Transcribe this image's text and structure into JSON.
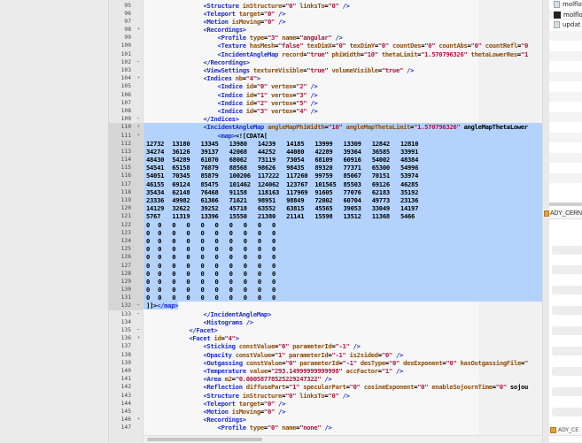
{
  "editor": {
    "selection": {
      "from_line": 110,
      "to_line": 132
    },
    "lines": [
      {
        "n": 95,
        "fold": "",
        "text": "                <Structure inStructure=\"0\" linksTo=\"0\" />"
      },
      {
        "n": 96,
        "fold": "",
        "text": "                <Teleport target=\"0\" />"
      },
      {
        "n": 97,
        "fold": "",
        "text": "                <Motion isMoving=\"0\" />"
      },
      {
        "n": 98,
        "fold": "open",
        "text": "                <Recordings>"
      },
      {
        "n": 99,
        "fold": "",
        "text": "                    <Profile type=\"3\" name=\"angular\" />"
      },
      {
        "n": 100,
        "fold": "",
        "text": "                    <Texture hasMesh=\"false\" texDimX=\"0\" texDimY=\"0\" countDes=\"0\" countAbs=\"0\" countRefl=\"0"
      },
      {
        "n": 101,
        "fold": "",
        "text": "                    <IncidentAngleMap record=\"true\" phiWidth=\"10\" thetaLimit=\"1.570796326\" thetaLowerRes=\"1"
      },
      {
        "n": 102,
        "fold": "end",
        "text": "                </Recordings>"
      },
      {
        "n": 103,
        "fold": "",
        "text": "                <ViewSettings textureVisible=\"true\" volumeVisible=\"true\" />"
      },
      {
        "n": 104,
        "fold": "open",
        "text": "                <Indices nb=\"4\">"
      },
      {
        "n": 105,
        "fold": "",
        "text": "                    <Indice id=\"0\" vertex=\"2\" />"
      },
      {
        "n": 106,
        "fold": "",
        "text": "                    <Indice id=\"1\" vertex=\"3\" />"
      },
      {
        "n": 107,
        "fold": "",
        "text": "                    <Indice id=\"2\" vertex=\"5\" />"
      },
      {
        "n": 108,
        "fold": "",
        "text": "                    <Indice id=\"3\" vertex=\"4\" />"
      },
      {
        "n": 109,
        "fold": "end",
        "text": "                </Indices>"
      },
      {
        "n": 110,
        "fold": "open",
        "text": "                <IncidentAngleMap angleMapPhiWidth=\"10\" angleMapThetaLimit=\"1.570796326\" angleMapThetaLower"
      },
      {
        "n": 111,
        "fold": "open",
        "text": "                    <map><![CDATA["
      },
      {
        "n": 112,
        "fold": "",
        "text": "12732\t13180\t13345\t13980\t14239\t14185\t13999\t13309\t12842\t12810"
      },
      {
        "n": 113,
        "fold": "",
        "text": "34274\t36126\t39137\t42068\t44252\t44080\t42289\t39364\t36585\t33991"
      },
      {
        "n": 114,
        "fold": "",
        "text": "48430\t54289\t61070\t68062\t73119\t73054\t68109\t60916\t54002\t48384"
      },
      {
        "n": 115,
        "fold": "",
        "text": "54541\t65158\t76879\t88568\t98626\t98435\t89320\t77371\t65300\t54996"
      },
      {
        "n": 116,
        "fold": "",
        "text": "54051\t70345\t85879\t100206\t117222\t117260\t99759\t85067\t70151\t53974"
      },
      {
        "n": 117,
        "fold": "",
        "text": "46155\t69124\t85475\t101462\t124062\t123767\t101565\t85503\t69126\t46285"
      },
      {
        "n": 118,
        "fold": "",
        "text": "35434\t62148\t76468\t91158\t118163\t117969\t91605\t77076\t62183\t35192"
      },
      {
        "n": 119,
        "fold": "",
        "text": "23336\t49982\t61306\t71621\t98951\t98849\t72002\t60704\t49773\t23136"
      },
      {
        "n": 120,
        "fold": "",
        "text": "14129\t32622\t39252\t45718\t63552\t63815\t45565\t39053\t33049\t14197"
      },
      {
        "n": 121,
        "fold": "",
        "text": "5767\t11319\t13396\t15550\t21380\t21141\t15598\t13512\t11368\t5466"
      },
      {
        "n": 122,
        "fold": "",
        "text": "0\t0\t0\t0\t0\t0\t0\t0\t0\t0"
      },
      {
        "n": 123,
        "fold": "",
        "text": "0\t0\t0\t0\t0\t0\t0\t0\t0\t0"
      },
      {
        "n": 124,
        "fold": "",
        "text": "0\t0\t0\t0\t0\t0\t0\t0\t0\t0"
      },
      {
        "n": 125,
        "fold": "",
        "text": "0\t0\t0\t0\t0\t0\t0\t0\t0\t0"
      },
      {
        "n": 126,
        "fold": "",
        "text": "0\t0\t0\t0\t0\t0\t0\t0\t0\t0"
      },
      {
        "n": 127,
        "fold": "",
        "text": "0\t0\t0\t0\t0\t0\t0\t0\t0\t0"
      },
      {
        "n": 128,
        "fold": "",
        "text": "0\t0\t0\t0\t0\t0\t0\t0\t0\t0"
      },
      {
        "n": 129,
        "fold": "",
        "text": "0\t0\t0\t0\t0\t0\t0\t0\t0\t0"
      },
      {
        "n": 130,
        "fold": "",
        "text": "0\t0\t0\t0\t0\t0\t0\t0\t0\t0"
      },
      {
        "n": 131,
        "fold": "",
        "text": "0\t0\t0\t0\t0\t0\t0\t0\t0\t0"
      },
      {
        "n": 132,
        "fold": "end",
        "text": "]]></map>"
      },
      {
        "n": 133,
        "fold": "end",
        "text": "                </IncidentAngleMap>"
      },
      {
        "n": 134,
        "fold": "",
        "text": "                <Histograms />"
      },
      {
        "n": 135,
        "fold": "end",
        "text": "            </Facet>"
      },
      {
        "n": 136,
        "fold": "open",
        "text": "            <Facet id=\"4\">"
      },
      {
        "n": 137,
        "fold": "",
        "text": "                <Sticking constValue=\"0\" parameterId=\"-1\" />"
      },
      {
        "n": 138,
        "fold": "",
        "text": "                <Opacity constValue=\"1\" parameterId=\"-1\" is2sided=\"0\" />"
      },
      {
        "n": 139,
        "fold": "",
        "text": "                <Outgassing constValue=\"0\" parameterId=\"-1\" desType=\"0\" desExponent=\"0\" hasOutgassingFile=\""
      },
      {
        "n": 140,
        "fold": "",
        "text": "                <Temperature value=\"293.14999999999998\" accFactor=\"1\" />"
      },
      {
        "n": 141,
        "fold": "",
        "text": "                <Area m2=\"0.00058778525229247322\" />"
      },
      {
        "n": 142,
        "fold": "",
        "text": "                <Reflection diffusePart=\"1\" specularPart=\"0\" cosineExponent=\"0\" enableSojournTime=\"0\" sojou"
      },
      {
        "n": 143,
        "fold": "",
        "text": "                <Structure inStructure=\"0\" linksTo=\"0\" />"
      },
      {
        "n": 144,
        "fold": "",
        "text": "                <Teleport target=\"0\" />"
      },
      {
        "n": 145,
        "fold": "",
        "text": "                <Motion isMoving=\"0\" />"
      },
      {
        "n": 146,
        "fold": "open",
        "text": "                <Recordings>"
      },
      {
        "n": 147,
        "fold": "",
        "text": "                    <Profile type=\"0\" name=\"none\" />"
      }
    ]
  },
  "colors": {
    "tag": "#2a3bd0",
    "attribute": "#a0580f",
    "value": "#b51f52",
    "selection": "#b3d3fd"
  },
  "finder": {
    "files": [
      {
        "icon": "document-icon",
        "name": "molflo"
      },
      {
        "icon": "terminal-executable-icon",
        "name": "molflo"
      },
      {
        "icon": "document-icon",
        "name": "updat"
      }
    ],
    "path_top": "ADY_CERN",
    "path_bottom": "ADY_CE"
  }
}
